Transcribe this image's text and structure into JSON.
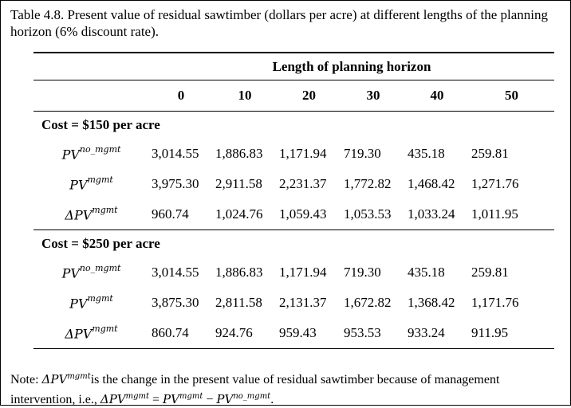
{
  "caption": "Table 4.8. Present value of residual sawtimber (dollars per acre) at different lengths of the planning horizon (6% discount rate).",
  "table": {
    "spanning_header": "Length of planning horizon",
    "columns": [
      "0",
      "10",
      "20",
      "30",
      "40",
      "50"
    ],
    "sections": [
      {
        "title": "Cost = $150 per acre",
        "rows": [
          {
            "label_base": "PV",
            "label_sup": "no_mgmt",
            "values": [
              "3,014.55",
              "1,886.83",
              "1,171.94",
              "719.30",
              "435.18",
              "259.81"
            ]
          },
          {
            "label_base": "PV",
            "label_sup": "mgmt",
            "values": [
              "3,975.30",
              "2,911.58",
              "2,231.37",
              "1,772.82",
              "1,468.42",
              "1,271.76"
            ]
          },
          {
            "label_base": "ΔPV",
            "label_sup": "mgmt",
            "values": [
              "960.74",
              "1,024.76",
              "1,059.43",
              "1,053.53",
              "1,033.24",
              "1,011.95"
            ]
          }
        ]
      },
      {
        "title": "Cost = $250 per acre",
        "rows": [
          {
            "label_base": "PV",
            "label_sup": "no_mgmt",
            "values": [
              "3,014.55",
              "1,886.83",
              "1,171.94",
              "719.30",
              "435.18",
              "259.81"
            ]
          },
          {
            "label_base": "PV",
            "label_sup": "mgmt",
            "values": [
              "3,875.30",
              "2,811.58",
              "2,131.37",
              "1,672.82",
              "1,368.42",
              "1,171.76"
            ]
          },
          {
            "label_base": "ΔPV",
            "label_sup": "mgmt",
            "values": [
              "860.74",
              "924.76",
              "959.43",
              "953.53",
              "933.24",
              "911.95"
            ]
          }
        ]
      }
    ]
  },
  "note": {
    "lead": "Note: ",
    "symbol_base": "ΔPV",
    "symbol_sup": "mgmt",
    "text_1": "is the change in the present value of residual sawtimber because of management intervention, i.e., ",
    "eq_lhs_base": "ΔPV",
    "eq_lhs_sup": "mgmt",
    "eq_op1": " = ",
    "eq_a_base": "PV",
    "eq_a_sup": "mgmt",
    "eq_op2": " − ",
    "eq_b_base": "PV",
    "eq_b_sup": "no_mgmt",
    "end": "."
  }
}
